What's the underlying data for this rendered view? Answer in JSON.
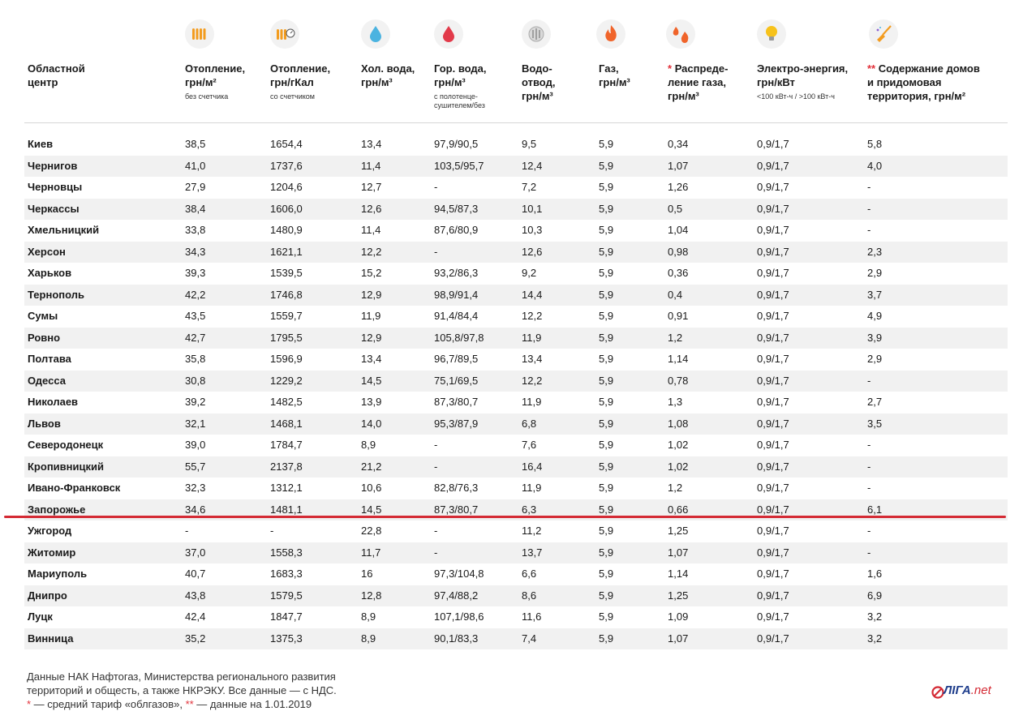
{
  "columns": [
    {
      "key": "city",
      "label": "Областной центр",
      "sub": "",
      "star": "",
      "icon": ""
    },
    {
      "key": "heat_m2",
      "label": "Отопление, грн/м²",
      "sub": "без счетчика",
      "star": "",
      "icon": "radiator-icon"
    },
    {
      "key": "heat_gcal",
      "label": "Отопление, грн/гКал",
      "sub": "со счетчиком",
      "star": "",
      "icon": "radiator-meter-icon"
    },
    {
      "key": "cold_water",
      "label": "Хол. вода, грн/м³",
      "sub": "",
      "star": "",
      "icon": "water-drop-icon"
    },
    {
      "key": "hot_water",
      "label": "Гор. вода, грн/м³",
      "sub": "с полотенце-сушителем/без",
      "star": "",
      "icon": "hot-drop-icon"
    },
    {
      "key": "sewage",
      "label": "Водо-отвод, грн/м³",
      "sub": "",
      "star": "",
      "icon": "drain-icon"
    },
    {
      "key": "gas",
      "label": "Газ, грн/м³",
      "sub": "",
      "star": "",
      "icon": "flame-icon"
    },
    {
      "key": "gas_dist",
      "label": "Распреде-ление газа, грн/м³",
      "sub": "",
      "star": "*",
      "icon": "gas-distribution-icon"
    },
    {
      "key": "electricity",
      "label": "Электро-энергия, грн/кВт",
      "sub": "<100 кВт-ч / >100 кВт-ч",
      "star": "",
      "icon": "lightbulb-icon"
    },
    {
      "key": "maintenance",
      "label": "Содержание домов и придомовая территория, грн/м²",
      "sub": "",
      "star": "**",
      "icon": "broom-icon"
    }
  ],
  "rows": [
    [
      "Киев",
      "38,5",
      "1654,4",
      "13,4",
      "97,9/90,5",
      "9,5",
      "5,9",
      "0,34",
      "0,9/1,7",
      "5,8"
    ],
    [
      "Чернигов",
      "41,0",
      "1737,6",
      "11,4",
      "103,5/95,7",
      "12,4",
      "5,9",
      "1,07",
      "0,9/1,7",
      "4,0"
    ],
    [
      "Черновцы",
      "27,9",
      "1204,6",
      "12,7",
      "-",
      "7,2",
      "5,9",
      "1,26",
      "0,9/1,7",
      "-"
    ],
    [
      "Черкассы",
      "38,4",
      "1606,0",
      "12,6",
      "94,5/87,3",
      "10,1",
      "5,9",
      "0,5",
      "0,9/1,7",
      "-"
    ],
    [
      "Хмельницкий",
      "33,8",
      "1480,9",
      "11,4",
      "87,6/80,9",
      "10,3",
      "5,9",
      "1,04",
      "0,9/1,7",
      "-"
    ],
    [
      "Херсон",
      "34,3",
      "1621,1",
      "12,2",
      "-",
      "12,6",
      "5,9",
      "0,98",
      "0,9/1,7",
      "2,3"
    ],
    [
      "Харьков",
      "39,3",
      "1539,5",
      "15,2",
      "93,2/86,3",
      "9,2",
      "5,9",
      "0,36",
      "0,9/1,7",
      "2,9"
    ],
    [
      "Тернополь",
      "42,2",
      "1746,8",
      "12,9",
      "98,9/91,4",
      "14,4",
      "5,9",
      "0,4",
      "0,9/1,7",
      "3,7"
    ],
    [
      "Сумы",
      "43,5",
      "1559,7",
      "11,9",
      "91,4/84,4",
      "12,2",
      "5,9",
      "0,91",
      "0,9/1,7",
      "4,9"
    ],
    [
      "Ровно",
      "42,7",
      "1795,5",
      "12,9",
      "105,8/97,8",
      "11,9",
      "5,9",
      "1,2",
      "0,9/1,7",
      "3,9"
    ],
    [
      "Полтава",
      "35,8",
      "1596,9",
      "13,4",
      "96,7/89,5",
      "13,4",
      "5,9",
      "1,14",
      "0,9/1,7",
      "2,9"
    ],
    [
      "Одесса",
      "30,8",
      "1229,2",
      "14,5",
      "75,1/69,5",
      "12,2",
      "5,9",
      "0,78",
      "0,9/1,7",
      "-"
    ],
    [
      "Николаев",
      "39,2",
      "1482,5",
      "13,9",
      "87,3/80,7",
      "11,9",
      "5,9",
      "1,3",
      "0,9/1,7",
      "2,7"
    ],
    [
      "Львов",
      "32,1",
      "1468,1",
      "14,0",
      "95,3/87,9",
      "6,8",
      "5,9",
      "1,08",
      "0,9/1,7",
      "3,5"
    ],
    [
      "Северодонецк",
      "39,0",
      "1784,7",
      "8,9",
      "-",
      "7,6",
      "5,9",
      "1,02",
      "0,9/1,7",
      "-"
    ],
    [
      "Кропивницкий",
      "55,7",
      "2137,8",
      "21,2",
      "-",
      "16,4",
      "5,9",
      "1,02",
      "0,9/1,7",
      "-"
    ],
    [
      "Ивано-Франковск",
      "32,3",
      "1312,1",
      "10,6",
      "82,8/76,3",
      "11,9",
      "5,9",
      "1,2",
      "0,9/1,7",
      "-"
    ],
    [
      "Запорожье",
      "34,6",
      "1481,1",
      "14,5",
      "87,3/80,7",
      "6,3",
      "5,9",
      "0,66",
      "0,9/1,7",
      "6,1"
    ],
    [
      "Ужгород",
      "-",
      "-",
      "22,8",
      "-",
      "11,2",
      "5,9",
      "1,25",
      "0,9/1,7",
      "-"
    ],
    [
      "Житомир",
      "37,0",
      "1558,3",
      "11,7",
      "-",
      "13,7",
      "5,9",
      "1,07",
      "0,9/1,7",
      "-"
    ],
    [
      "Мариуполь",
      "40,7",
      "1683,3",
      "16",
      "97,3/104,8",
      "6,6",
      "5,9",
      "1,14",
      "0,9/1,7",
      "1,6"
    ],
    [
      "Днипро",
      "43,8",
      "1579,5",
      "12,8",
      "97,4/88,2",
      "8,6",
      "5,9",
      "1,25",
      "0,9/1,7",
      "6,9"
    ],
    [
      "Луцк",
      "42,4",
      "1847,7",
      "8,9",
      "107,1/98,6",
      "11,6",
      "5,9",
      "1,09",
      "0,9/1,7",
      "3,2"
    ],
    [
      "Винница",
      "35,2",
      "1375,3",
      "8,9",
      "90,1/83,3",
      "7,4",
      "5,9",
      "1,07",
      "0,9/1,7",
      "3,2"
    ]
  ],
  "footer": {
    "line1": "Данные НАК Нафтогаз, Министерства регионального развития",
    "line2": "территорий и общесть, а также НКРЭКУ. Все данные — с НДС.",
    "star1": "*",
    "note1": " — средний тариф «облгазов», ",
    "star2": "**",
    "note2": " — данные на 1.01.2019"
  },
  "logo": {
    "main": "ЛIГА",
    "suffix": ".net"
  },
  "colors": {
    "accent_red": "#d42a34",
    "icon_orange": "#f39c1f",
    "stripe": "#f1f1f1"
  }
}
